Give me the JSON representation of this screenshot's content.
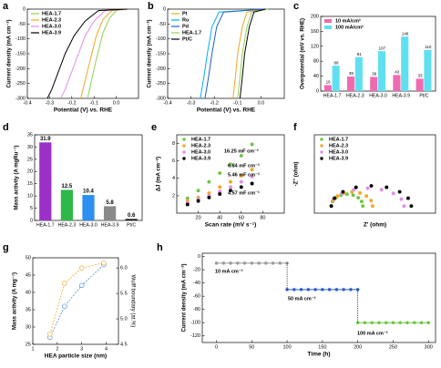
{
  "chart_data": [
    {
      "type": "line",
      "label": "a",
      "xlabel": "Potential (V) vs. RHE",
      "ylabel": "Current density (mA cm⁻²)",
      "xlim": [
        -0.4,
        0.1
      ],
      "xticks": [
        -0.4,
        -0.3,
        -0.2,
        -0.1,
        {
          "value": 0,
          "label": "0.0"
        }
      ],
      "ylim": [
        -300,
        0
      ],
      "yticks": [
        0,
        -50,
        -100,
        -150,
        -200,
        -250,
        -300
      ],
      "legend": "upper left",
      "series": [
        {
          "name": "HEA-1.7",
          "color": "#8fd14f",
          "x": [
            0.05,
            0.0,
            -0.03,
            -0.06,
            -0.08,
            -0.1,
            -0.12,
            -0.13
          ],
          "values": [
            0,
            -5,
            -30,
            -80,
            -140,
            -200,
            -270,
            -300
          ]
        },
        {
          "name": "HEA-2.3",
          "color": "#f5a623",
          "x": [
            0.05,
            -0.02,
            -0.06,
            -0.09,
            -0.11,
            -0.13,
            -0.15,
            -0.16
          ],
          "values": [
            0,
            -5,
            -35,
            -90,
            -150,
            -210,
            -270,
            -300
          ]
        },
        {
          "name": "HEA-3.0",
          "color": "#e08ee8",
          "x": [
            0.05,
            -0.05,
            -0.1,
            -0.14,
            -0.17,
            -0.2,
            -0.23,
            -0.25
          ],
          "values": [
            0,
            -5,
            -40,
            -90,
            -150,
            -210,
            -270,
            -300
          ]
        },
        {
          "name": "HEA-3.9",
          "color": "#000000",
          "x": [
            0.05,
            -0.08,
            -0.14,
            -0.19,
            -0.23,
            -0.26,
            -0.29,
            -0.31
          ],
          "values": [
            0,
            -5,
            -40,
            -90,
            -150,
            -210,
            -270,
            -300
          ]
        }
      ]
    },
    {
      "type": "line",
      "label": "b",
      "xlabel": "Potential (V) vs. RHE",
      "ylabel": "Current density (mA cm⁻²)",
      "xlim": [
        -0.4,
        0.1
      ],
      "xticks": [
        -0.4,
        -0.3,
        -0.2,
        -0.1,
        {
          "value": 0,
          "label": "0.0"
        }
      ],
      "ylim": [
        -300,
        0
      ],
      "yticks": [
        0,
        -50,
        -100,
        -150,
        -200,
        -250,
        -300
      ],
      "legend": "upper left",
      "series": [
        {
          "name": "Pt",
          "color": "#f5a623",
          "x": [
            0.02,
            -0.06,
            -0.08,
            -0.1,
            -0.11,
            -0.12
          ],
          "values": [
            0,
            -10,
            -60,
            -150,
            -230,
            -300
          ]
        },
        {
          "name": "Ru",
          "color": "#00b0f0",
          "x": [
            0.02,
            -0.18,
            -0.21,
            -0.23,
            -0.245,
            -0.26
          ],
          "values": [
            0,
            -10,
            -60,
            -150,
            -230,
            -300
          ]
        },
        {
          "name": "Pd",
          "color": "#1f5fbf",
          "x": [
            0.02,
            -0.16,
            -0.19,
            -0.21,
            -0.225,
            -0.24
          ],
          "values": [
            0,
            -10,
            -60,
            -150,
            -230,
            -300
          ]
        },
        {
          "name": "HEA-1.7",
          "color": "#8fd14f",
          "x": [
            0.03,
            -0.04,
            -0.06,
            -0.08,
            -0.09,
            -0.1
          ],
          "values": [
            0,
            -10,
            -60,
            -150,
            -230,
            -300
          ]
        },
        {
          "name": "Pt/C",
          "color": "#000000",
          "x": [
            0.02,
            -0.03,
            -0.05,
            -0.07,
            -0.08,
            -0.09
          ],
          "values": [
            0,
            -10,
            -60,
            -150,
            -230,
            -300
          ]
        }
      ]
    },
    {
      "type": "bar",
      "label": "c",
      "ylabel": "Overpotential (mV vs. RHE)",
      "show_values": true,
      "categories": [
        "HEA-1.7",
        "HEA-2.3",
        "HEA-3.0",
        "HEA-3.9",
        "Pt/C"
      ],
      "ylim": [
        0,
        200
      ],
      "yticks": [
        0,
        40,
        80,
        120,
        160,
        200
      ],
      "legend": "upper left",
      "series": [
        {
          "name": "10 mA/cm²",
          "color": "#f06ab0",
          "values": [
            16,
            39,
            38,
            43,
            33
          ]
        },
        {
          "name": "100 mA/cm²",
          "color": "#5fe0f0",
          "values": [
            68,
            91,
            107,
            146,
            110
          ]
        }
      ]
    },
    {
      "type": "bar",
      "label": "d",
      "ylabel": "Mass activity (A mgRu⁻¹)",
      "show_values": true,
      "categories": [
        "HEA-1.7",
        "HEA-2.3",
        "HEA-3.0",
        "HEA-3.9",
        "Pt/C"
      ],
      "values": [
        31.9,
        12.5,
        10.4,
        5.8,
        0.6
      ],
      "colors": [
        "#9b30c8",
        "#2eb84a",
        "#2d8ff0",
        "#8a8a8a",
        "#111111"
      ],
      "ylim": [
        0,
        35
      ],
      "yticks": [
        0,
        5,
        10,
        15,
        20,
        25,
        30,
        35
      ]
    },
    {
      "type": "scatter",
      "label": "e",
      "xlabel": "Scan rate (mV s⁻¹)",
      "ylabel": "ΔJ (mA cm⁻²)",
      "xlim": [
        0,
        100
      ],
      "xticks": [
        20,
        40,
        60,
        80
      ],
      "ylim": [
        0,
        9
      ],
      "yticks": [
        2,
        4,
        6,
        8
      ],
      "legend": "upper left",
      "series": [
        {
          "name": "HEA-1.7",
          "color": "#6cc644",
          "x": [
            10,
            20,
            30,
            40,
            50,
            60,
            70
          ],
          "values": [
            1.7,
            2.6,
            3.6,
            4.6,
            5.6,
            6.6,
            7.9
          ]
        },
        {
          "name": "HEA-2.3",
          "color": "#f5a623",
          "x": [
            10,
            20,
            30,
            40,
            50,
            60,
            70
          ],
          "values": [
            1.4,
            1.8,
            2.3,
            3.0,
            3.6,
            4.3,
            5.0
          ]
        },
        {
          "name": "HEA-3.0",
          "color": "#e08ee8",
          "x": [
            10,
            20,
            30,
            40,
            50,
            60,
            70
          ],
          "values": [
            1.2,
            1.6,
            2.0,
            2.5,
            3.0,
            3.6,
            4.2
          ]
        },
        {
          "name": "HEA-3.9",
          "color": "#000000",
          "x": [
            10,
            20,
            30,
            40,
            50,
            60,
            70
          ],
          "values": [
            1.0,
            1.4,
            1.8,
            2.2,
            2.6,
            3.0,
            3.4
          ]
        }
      ],
      "annotations": [
        {
          "text": "16.25 mF cm⁻²",
          "color": "#6cc644"
        },
        {
          "text": "6.84 mF cm⁻²",
          "color": "#f5a623"
        },
        {
          "text": "5.46 mF cm⁻²",
          "color": "#e08ee8"
        },
        {
          "text": "4.57 mF cm⁻²",
          "color": "#000000"
        }
      ]
    },
    {
      "type": "scatter",
      "label": "f",
      "xlabel": "Z' (ohm)",
      "ylabel": "-Z'' (ohm)",
      "xlim": [
        0,
        50
      ],
      "xticks": [],
      "ylim": [
        -3,
        30
      ],
      "yticks": [],
      "legend": "upper left",
      "series": [
        {
          "name": "HEA-1.7",
          "color": "#6cc644",
          "x": [
            7,
            7.5,
            8.9,
            11,
            13.5,
            16,
            18.1,
            19.5,
            20
          ],
          "values": [
            0,
            1.9,
            3.5,
            4.6,
            5,
            4.6,
            3.5,
            1.9,
            0
          ]
        },
        {
          "name": "HEA-2.3",
          "color": "#f5a623",
          "x": [
            7,
            7.6,
            9.5,
            12.2,
            15.5,
            18.8,
            21.5,
            23.4,
            24
          ],
          "values": [
            0,
            2.3,
            4.2,
            5.5,
            6,
            5.5,
            4.2,
            2.3,
            0
          ]
        },
        {
          "name": "HEA-3.0",
          "color": "#e08ee8",
          "x": [
            7,
            8.1,
            11.4,
            16.3,
            22,
            27.7,
            32.6,
            35.9,
            37
          ],
          "values": [
            0,
            2.9,
            5.3,
            6.9,
            7.5,
            6.9,
            5.3,
            2.9,
            0
          ]
        },
        {
          "name": "HEA-3.9",
          "color": "#000000",
          "x": [
            7,
            8.3,
            11.8,
            17.2,
            23.5,
            29.8,
            35.2,
            38.7,
            40
          ],
          "values": [
            0,
            3.3,
            6,
            7.9,
            8.5,
            7.9,
            6,
            3.3,
            0
          ]
        }
      ]
    },
    {
      "type": "line",
      "label": "g",
      "xlabel": "HEA particle size (nm)",
      "ylabel": "Mass activity (A mg⁻¹)",
      "y2label": "Wulff boundary (at.%)",
      "xlim": [
        1,
        4.5
      ],
      "xticks": [
        1,
        2,
        3,
        4
      ],
      "ylim": [
        25,
        50
      ],
      "yticks": [
        25,
        30,
        35,
        40,
        45,
        50
      ],
      "y2lim": [
        4.5,
        6.2
      ],
      "y2ticks": [
        4.5,
        {
          "value": 5,
          "label": "5.0"
        },
        5.5,
        {
          "value": 6,
          "label": "6.0"
        }
      ],
      "series": [
        {
          "color": "#4a90e2",
          "dash": true,
          "marker": "hollow",
          "x": [
            1.7,
            2.3,
            3.0,
            3.9
          ],
          "values": [
            27,
            36,
            42,
            48
          ]
        },
        {
          "color": "#f5a623",
          "dash": true,
          "marker": "hollow",
          "axis": "y2",
          "x": [
            1.7,
            2.3,
            3.0,
            3.9
          ],
          "values": [
            4.7,
            5.7,
            6.0,
            6.1
          ]
        }
      ]
    },
    {
      "type": "line",
      "label": "h",
      "xlabel": "Time (h)",
      "ylabel": "Current density (mA cm⁻²)",
      "xlim": [
        -20,
        310
      ],
      "xticks": [
        0,
        50,
        100,
        150,
        200,
        250,
        300
      ],
      "ylim": [
        -130,
        5
      ],
      "yticks": [
        0,
        -20,
        -40,
        -60,
        -80,
        -100,
        -120
      ],
      "series": [
        {
          "color": "#9a9a9a",
          "marker": "filled",
          "x": [
            0,
            10,
            20,
            30,
            40,
            50,
            60,
            70,
            80,
            90,
            100
          ],
          "values": [
            -10,
            -10,
            -10,
            -10,
            -10,
            -10,
            -10,
            -10,
            -10,
            -10,
            -10
          ]
        },
        {
          "color": "#2f5fbf",
          "marker": "filled",
          "x": [
            100,
            110,
            120,
            130,
            140,
            150,
            160,
            170,
            180,
            190,
            200
          ],
          "values": [
            -50,
            -50,
            -50,
            -50,
            -50,
            -50,
            -50,
            -50,
            -50,
            -50,
            -50
          ]
        },
        {
          "color": "#6cc644",
          "marker": "filled",
          "x": [
            200,
            210,
            220,
            230,
            240,
            250,
            260,
            270,
            280,
            290,
            300
          ],
          "values": [
            -100,
            -100,
            -100,
            -100,
            -100,
            -100,
            -100,
            -100,
            -100,
            -100,
            -100
          ]
        }
      ],
      "annotations": [
        {
          "text": "10 mA cm⁻²",
          "color": "#000000"
        },
        {
          "text": "50 mA cm⁻²",
          "color": "#000000"
        },
        {
          "text": "100 mA cm⁻²",
          "color": "#000000"
        }
      ]
    }
  ]
}
